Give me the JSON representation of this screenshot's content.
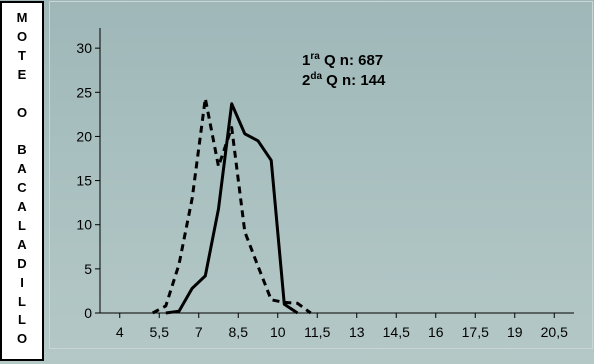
{
  "side_label": {
    "letters": [
      "M",
      "O",
      "T",
      "E",
      "",
      "O",
      "",
      "B",
      "A",
      "C",
      "A",
      "L",
      "A",
      "D",
      "I",
      "L",
      "L",
      "O"
    ]
  },
  "annotations": {
    "line1": {
      "prefix": "1",
      "sup": "ra",
      "text": " Q n:  687"
    },
    "line2": {
      "prefix": "2",
      "sup": "da",
      "text": " Q n: 144"
    }
  },
  "chart_data": {
    "type": "line",
    "title": "",
    "xlabel": "",
    "ylabel": "",
    "categories": [
      "4",
      "5,5",
      "7",
      "8,5",
      "10",
      "11,5",
      "13",
      "14,5",
      "16",
      "17,5",
      "19",
      "20,5"
    ],
    "ylim": [
      0,
      35
    ],
    "yticks": [
      0,
      5,
      10,
      15,
      20,
      25,
      30
    ],
    "grid": false,
    "series": [
      {
        "style": "solid",
        "color": "#000000",
        "x": [
          5.75,
          6.25,
          6.75,
          7.25,
          7.75,
          8.25,
          8.75,
          9.25,
          9.75,
          10.25,
          10.75
        ],
        "values": [
          0,
          0.2,
          2.8,
          4.2,
          11.8,
          23.7,
          20.3,
          19.5,
          17.3,
          1.0,
          0
        ]
      },
      {
        "style": "dashed",
        "color": "#000000",
        "x": [
          5.25,
          5.75,
          6.25,
          6.75,
          7.25,
          7.75,
          8.25,
          8.75,
          9.25,
          9.75,
          10.25,
          10.75,
          11.25
        ],
        "values": [
          0,
          0.8,
          5.5,
          13.0,
          24.3,
          16.6,
          21.0,
          9.2,
          5.3,
          1.5,
          1.2,
          1.1,
          0
        ]
      }
    ]
  }
}
